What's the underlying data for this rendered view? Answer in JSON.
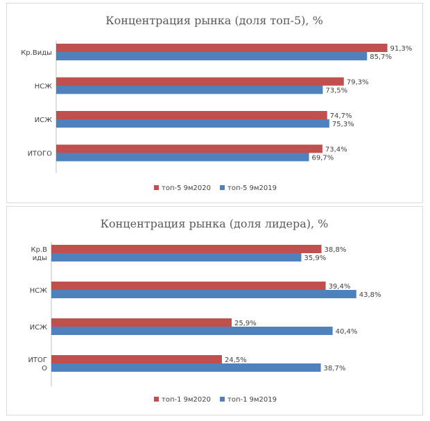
{
  "colors": {
    "series_2020": "#c0504d",
    "series_2019": "#4f81bd",
    "axis": "#bfbfbf"
  },
  "chart_data": [
    {
      "type": "bar",
      "orientation": "horizontal",
      "title": "Концентрация рынка (доля топ-5), %",
      "categories": [
        [
          "Кр.Виды"
        ],
        [
          "НСЖ"
        ],
        [
          "ИСЖ"
        ],
        [
          "ИТОГО"
        ]
      ],
      "series": [
        {
          "name": "топ-5 9м2020",
          "values": [
            91.3,
            79.3,
            74.7,
            73.4
          ],
          "labels": [
            "91,3%",
            "79,3%",
            "74,7%",
            "73,4%"
          ]
        },
        {
          "name": "топ-5 9м2019",
          "values": [
            85.7,
            73.5,
            75.3,
            69.7
          ],
          "labels": [
            "85,7%",
            "73,5%",
            "75,3%",
            "69,7%"
          ]
        }
      ],
      "xlim": [
        0,
        100
      ],
      "grid": false,
      "legend_position": "bottom"
    },
    {
      "type": "bar",
      "orientation": "horizontal",
      "title": "Концентрация рынка (доля лидера), %",
      "categories": [
        [
          "Кр.В",
          "иды"
        ],
        [
          "НСЖ"
        ],
        [
          "ИСЖ"
        ],
        [
          "ИТОГ",
          "О"
        ]
      ],
      "series": [
        {
          "name": "топ-1 9м2020",
          "values": [
            38.8,
            39.4,
            25.9,
            24.5
          ],
          "labels": [
            "38,8%",
            "39,4%",
            "25,9%",
            "24,5%"
          ]
        },
        {
          "name": "топ-1 9м2019",
          "values": [
            35.9,
            43.8,
            40.4,
            38.7
          ],
          "labels": [
            "35,9%",
            "43,8%",
            "40,4%",
            "38,7%"
          ]
        }
      ],
      "xlim": [
        0,
        50
      ],
      "grid": false,
      "legend_position": "bottom"
    }
  ]
}
